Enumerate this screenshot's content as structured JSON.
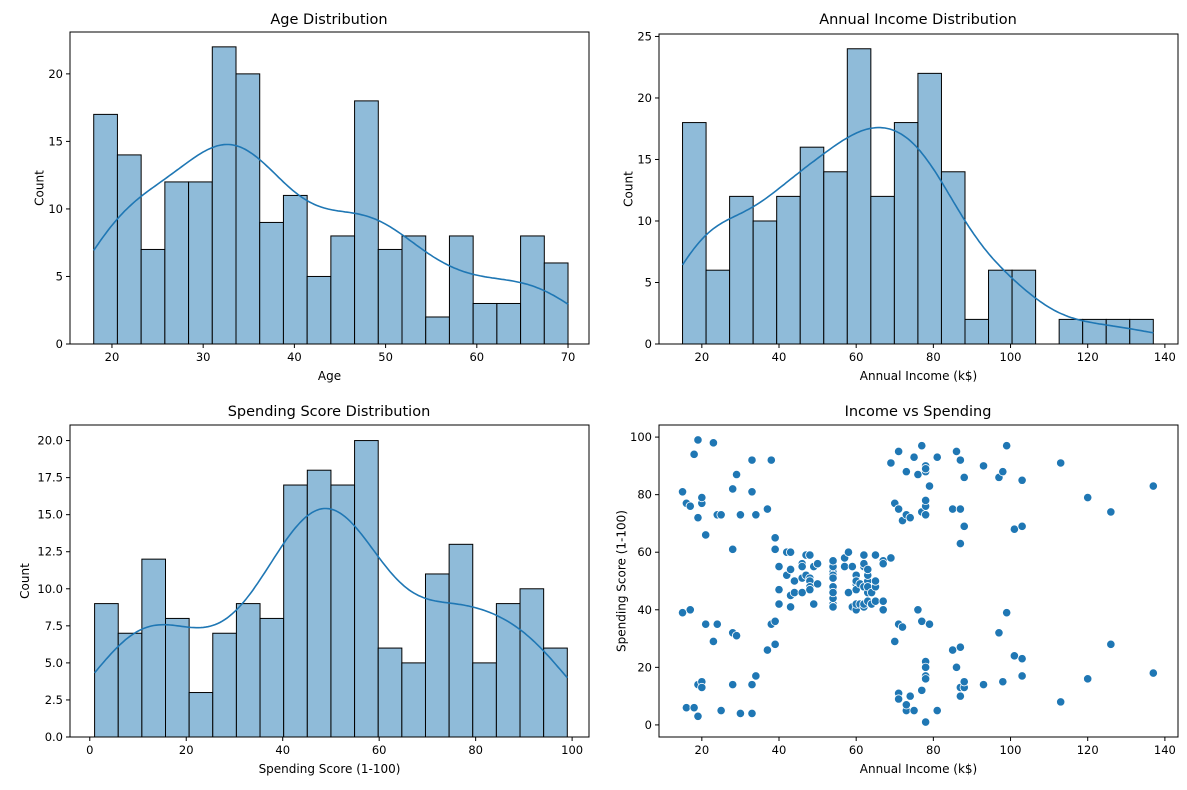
{
  "figure": {
    "bar_fill": "#8fbbd9",
    "bar_edge": "#000000",
    "line_color": "#1f77b4",
    "point_color": "#1f77b4"
  },
  "chart_data": [
    {
      "id": "age",
      "type": "bar",
      "subtype": "histogram_with_kde",
      "title": "Age Distribution",
      "xlabel": "Age",
      "ylabel": "Count",
      "bin_range": [
        18,
        70
      ],
      "bins": 20,
      "values": [
        17,
        14,
        7,
        12,
        12,
        22,
        20,
        9,
        11,
        5,
        8,
        18,
        7,
        8,
        2,
        8,
        3,
        3,
        8,
        6
      ],
      "xlim": [
        15.4,
        72.3
      ],
      "ylim": [
        0,
        23.1
      ],
      "xticks": [
        20,
        30,
        40,
        50,
        60,
        70
      ],
      "xtick_labels": [
        "20",
        "30",
        "40",
        "50",
        "60",
        "70"
      ],
      "yticks": [
        0,
        5,
        10,
        15,
        20
      ],
      "ytick_labels": [
        "0",
        "5",
        "10",
        "15",
        "20"
      ],
      "kde": true,
      "grid": false
    },
    {
      "id": "income",
      "type": "bar",
      "subtype": "histogram_with_kde",
      "title": "Annual Income Distribution",
      "xlabel": "Annual Income (k$)",
      "ylabel": "Count",
      "bin_range": [
        15,
        137
      ],
      "bins": 20,
      "values": [
        18,
        6,
        12,
        10,
        12,
        16,
        14,
        24,
        12,
        18,
        22,
        14,
        2,
        6,
        6,
        0,
        2,
        2,
        2,
        2
      ],
      "xlim": [
        8.9,
        143.4
      ],
      "ylim": [
        0,
        25.2
      ],
      "xticks": [
        20,
        40,
        60,
        80,
        100,
        120,
        140
      ],
      "xtick_labels": [
        "20",
        "40",
        "60",
        "80",
        "100",
        "120",
        "140"
      ],
      "yticks": [
        0,
        5,
        10,
        15,
        20,
        25
      ],
      "ytick_labels": [
        "0",
        "5",
        "10",
        "15",
        "20",
        "25"
      ],
      "kde": true,
      "grid": false
    },
    {
      "id": "spending",
      "type": "bar",
      "subtype": "histogram_with_kde",
      "title": "Spending Score Distribution",
      "xlabel": "Spending Score (1-100)",
      "ylabel": "Count",
      "bin_range": [
        1,
        99
      ],
      "bins": 20,
      "values": [
        9,
        7,
        12,
        8,
        3,
        7,
        9,
        8,
        17,
        18,
        17,
        20,
        6,
        5,
        11,
        13,
        5,
        9,
        10,
        6
      ],
      "xlim": [
        -4.1,
        103.5
      ],
      "ylim": [
        0,
        21.05
      ],
      "xticks": [
        0,
        20,
        40,
        60,
        80,
        100
      ],
      "xtick_labels": [
        "0",
        "20",
        "40",
        "60",
        "80",
        "100"
      ],
      "yticks": [
        0,
        2.5,
        5,
        7.5,
        10,
        12.5,
        15,
        17.5,
        20
      ],
      "ytick_labels": [
        "0.0",
        "2.5",
        "5.0",
        "7.5",
        "10.0",
        "12.5",
        "15.0",
        "17.5",
        "20.0"
      ],
      "kde": true,
      "grid": false
    },
    {
      "id": "scatter",
      "type": "scatter",
      "title": "Income vs Spending",
      "xlabel": "Annual Income (k$)",
      "ylabel": "Spending Score (1-100)",
      "xlim": [
        8.9,
        143.4
      ],
      "ylim": [
        -4.2,
        104.2
      ],
      "xticks": [
        20,
        40,
        60,
        80,
        100,
        120,
        140
      ],
      "xtick_labels": [
        "20",
        "40",
        "60",
        "80",
        "100",
        "120",
        "140"
      ],
      "yticks": [
        0,
        20,
        40,
        60,
        80,
        100
      ],
      "ytick_labels": [
        "0",
        "20",
        "40",
        "60",
        "80",
        "100"
      ],
      "grid": false,
      "x": [
        15,
        15,
        16,
        16,
        17,
        17,
        18,
        18,
        19,
        19,
        19,
        19,
        20,
        20,
        20,
        20,
        21,
        21,
        23,
        23,
        24,
        24,
        25,
        25,
        28,
        28,
        28,
        28,
        29,
        29,
        30,
        30,
        33,
        33,
        33,
        33,
        34,
        34,
        37,
        37,
        38,
        38,
        39,
        39,
        39,
        39,
        40,
        40,
        40,
        40,
        42,
        42,
        43,
        43,
        43,
        43,
        44,
        44,
        46,
        46,
        46,
        46,
        47,
        47,
        48,
        48,
        48,
        48,
        48,
        48,
        49,
        49,
        50,
        50,
        54,
        54,
        54,
        54,
        54,
        54,
        54,
        54,
        54,
        54,
        54,
        54,
        57,
        57,
        58,
        58,
        59,
        59,
        60,
        60,
        60,
        60,
        60,
        60,
        61,
        61,
        62,
        62,
        62,
        62,
        62,
        62,
        63,
        63,
        63,
        63,
        63,
        63,
        64,
        64,
        65,
        65,
        65,
        65,
        67,
        67,
        67,
        67,
        69,
        69,
        70,
        70,
        71,
        71,
        71,
        71,
        71,
        71,
        72,
        72,
        73,
        73,
        73,
        73,
        74,
        74,
        75,
        75,
        76,
        76,
        77,
        77,
        77,
        77,
        78,
        78,
        78,
        78,
        78,
        78,
        78,
        78,
        78,
        78,
        78,
        78,
        79,
        79,
        81,
        81,
        85,
        85,
        86,
        86,
        87,
        87,
        87,
        87,
        87,
        87,
        88,
        88,
        88,
        88,
        93,
        93,
        97,
        97,
        98,
        98,
        99,
        99,
        101,
        101,
        103,
        103,
        103,
        103,
        113,
        113,
        120,
        120,
        126,
        126,
        137,
        137
      ],
      "y": [
        39,
        81,
        6,
        77,
        40,
        76,
        6,
        94,
        3,
        72,
        14,
        99,
        15,
        77,
        13,
        79,
        35,
        66,
        29,
        98,
        35,
        73,
        5,
        73,
        14,
        82,
        32,
        61,
        31,
        87,
        4,
        73,
        4,
        92,
        14,
        81,
        17,
        73,
        26,
        75,
        35,
        92,
        36,
        61,
        28,
        65,
        55,
        47,
        42,
        42,
        52,
        60,
        54,
        60,
        45,
        41,
        50,
        46,
        51,
        46,
        56,
        55,
        52,
        59,
        51,
        59,
        50,
        48,
        59,
        47,
        55,
        42,
        49,
        56,
        47,
        54,
        53,
        48,
        52,
        42,
        51,
        55,
        41,
        44,
        57,
        46,
        58,
        55,
        60,
        46,
        55,
        41,
        49,
        40,
        42,
        52,
        47,
        50,
        42,
        49,
        41,
        48,
        59,
        55,
        56,
        42,
        50,
        46,
        43,
        48,
        52,
        54,
        42,
        46,
        48,
        50,
        43,
        59,
        43,
        57,
        56,
        40,
        58,
        91,
        29,
        77,
        35,
        95,
        11,
        75,
        9,
        75,
        34,
        71,
        5,
        88,
        7,
        73,
        10,
        72,
        5,
        93,
        40,
        87,
        12,
        97,
        36,
        74,
        22,
        90,
        17,
        88,
        20,
        76,
        16,
        89,
        1,
        78,
        1,
        73,
        35,
        83,
        5,
        93,
        26,
        75,
        20,
        95,
        27,
        63,
        13,
        75,
        10,
        92,
        13,
        86,
        15,
        69,
        14,
        90,
        32,
        86,
        15,
        88,
        39,
        97,
        24,
        68,
        17,
        85,
        23,
        69,
        8,
        91,
        16,
        79,
        28,
        74,
        18,
        83
      ]
    }
  ]
}
